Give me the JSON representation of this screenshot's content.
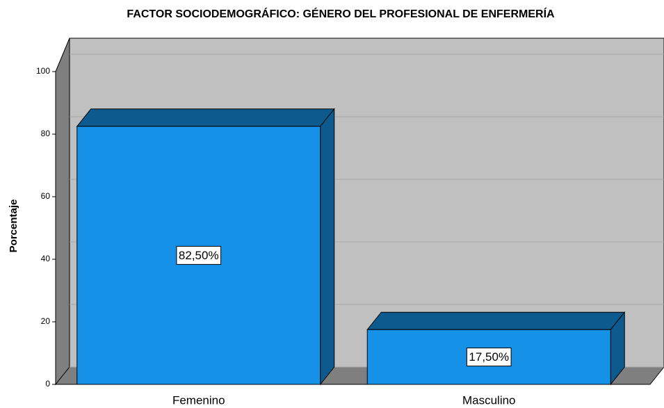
{
  "chart_data": {
    "type": "bar3d",
    "title": "FACTOR SOCIODEMOGRÁFICO: GÉNERO DEL PROFESIONAL DE ENFERMERÍA",
    "y_label": "Porcentaje",
    "categories": [
      "Femenino",
      "Masculino"
    ],
    "values": [
      82.5,
      17.5
    ],
    "value_labels": [
      "82,50%",
      "17,50%"
    ],
    "color": "#1591e8",
    "ylim": [
      0,
      100
    ],
    "yticks": [
      0,
      20,
      40,
      60,
      80,
      100
    ],
    "grid": true
  }
}
